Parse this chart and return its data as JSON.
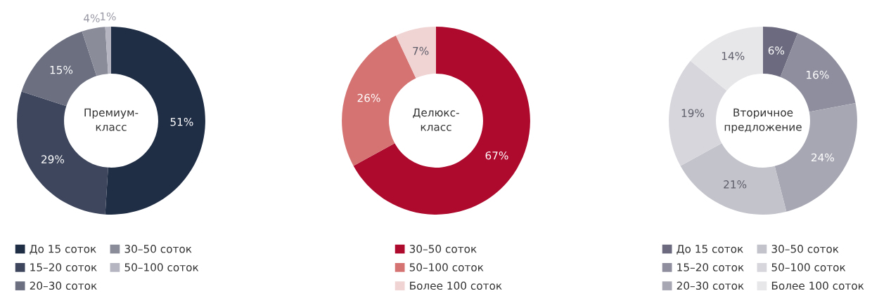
{
  "chart_data": [
    {
      "type": "donut",
      "title": "Премиум-\nкласс",
      "categories": [
        "До 15 соток",
        "15–20 соток",
        "20–30 соток",
        "30–50 соток",
        "50–100 соток"
      ],
      "values": [
        51,
        29,
        15,
        4,
        1
      ],
      "value_labels": [
        "51%",
        "29%",
        "15%",
        "4%",
        "1%"
      ],
      "colors": [
        "#1f2d45",
        "#3d465c",
        "#6b6f80",
        "#8a8c9a",
        "#b4b5c0"
      ],
      "legend": "bottom"
    },
    {
      "type": "donut",
      "title": "Делюкс-\nкласс",
      "categories": [
        "30–50 соток",
        "50–100 соток",
        "Более 100 соток"
      ],
      "values": [
        67,
        26,
        7
      ],
      "value_labels": [
        "67%",
        "26%",
        "7%"
      ],
      "colors": [
        "#ad0a2e",
        "#d57372",
        "#f0d3d3"
      ],
      "legend": "bottom"
    },
    {
      "type": "donut",
      "title": "Вторичное\nпредложение",
      "categories": [
        "До 15 соток",
        "15–20 соток",
        "20–30 соток",
        "30–50 соток",
        "50–100 соток",
        "Более 100 соток"
      ],
      "values": [
        6,
        16,
        24,
        21,
        19,
        14
      ],
      "value_labels": [
        "6%",
        "16%",
        "24%",
        "21%",
        "19%",
        "14%"
      ],
      "colors": [
        "#6b6a7e",
        "#8e8e9e",
        "#a7a7b3",
        "#c2c3cb",
        "#d6d6dc",
        "#e7e7ea"
      ],
      "legend": "bottom"
    }
  ]
}
